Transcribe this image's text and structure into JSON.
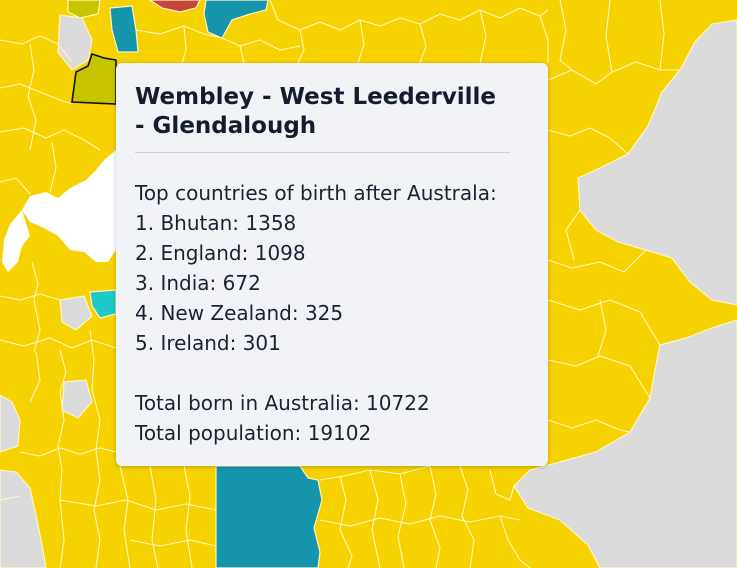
{
  "map": {
    "colors": {
      "base": "#f6d200",
      "other_region": "#dadada",
      "teal_region": "#1596ad",
      "cyan_region": "#1fc9c8",
      "red_region": "#c5473b",
      "selected_region": "#c7c400",
      "boundary": "#fff6c4",
      "water": "#ffffff",
      "selected_outline": "#111111"
    },
    "tooltip": {
      "title": "Wembley - West Leederville - Glendalough",
      "heading": "Top countries of birth after Australa:",
      "countries": [
        {
          "rank": "1.",
          "label": "1. Bhutan: 1358"
        },
        {
          "rank": "2.",
          "label": "2. England: 1098"
        },
        {
          "rank": "3.",
          "label": "3. India: 672"
        },
        {
          "rank": "4.",
          "label": "4. New Zealand: 325"
        },
        {
          "rank": "5.",
          "label": "5. Ireland: 301"
        }
      ],
      "total_born": "Total born in Australia: 10722",
      "total_population": "Total population: 19102"
    }
  }
}
